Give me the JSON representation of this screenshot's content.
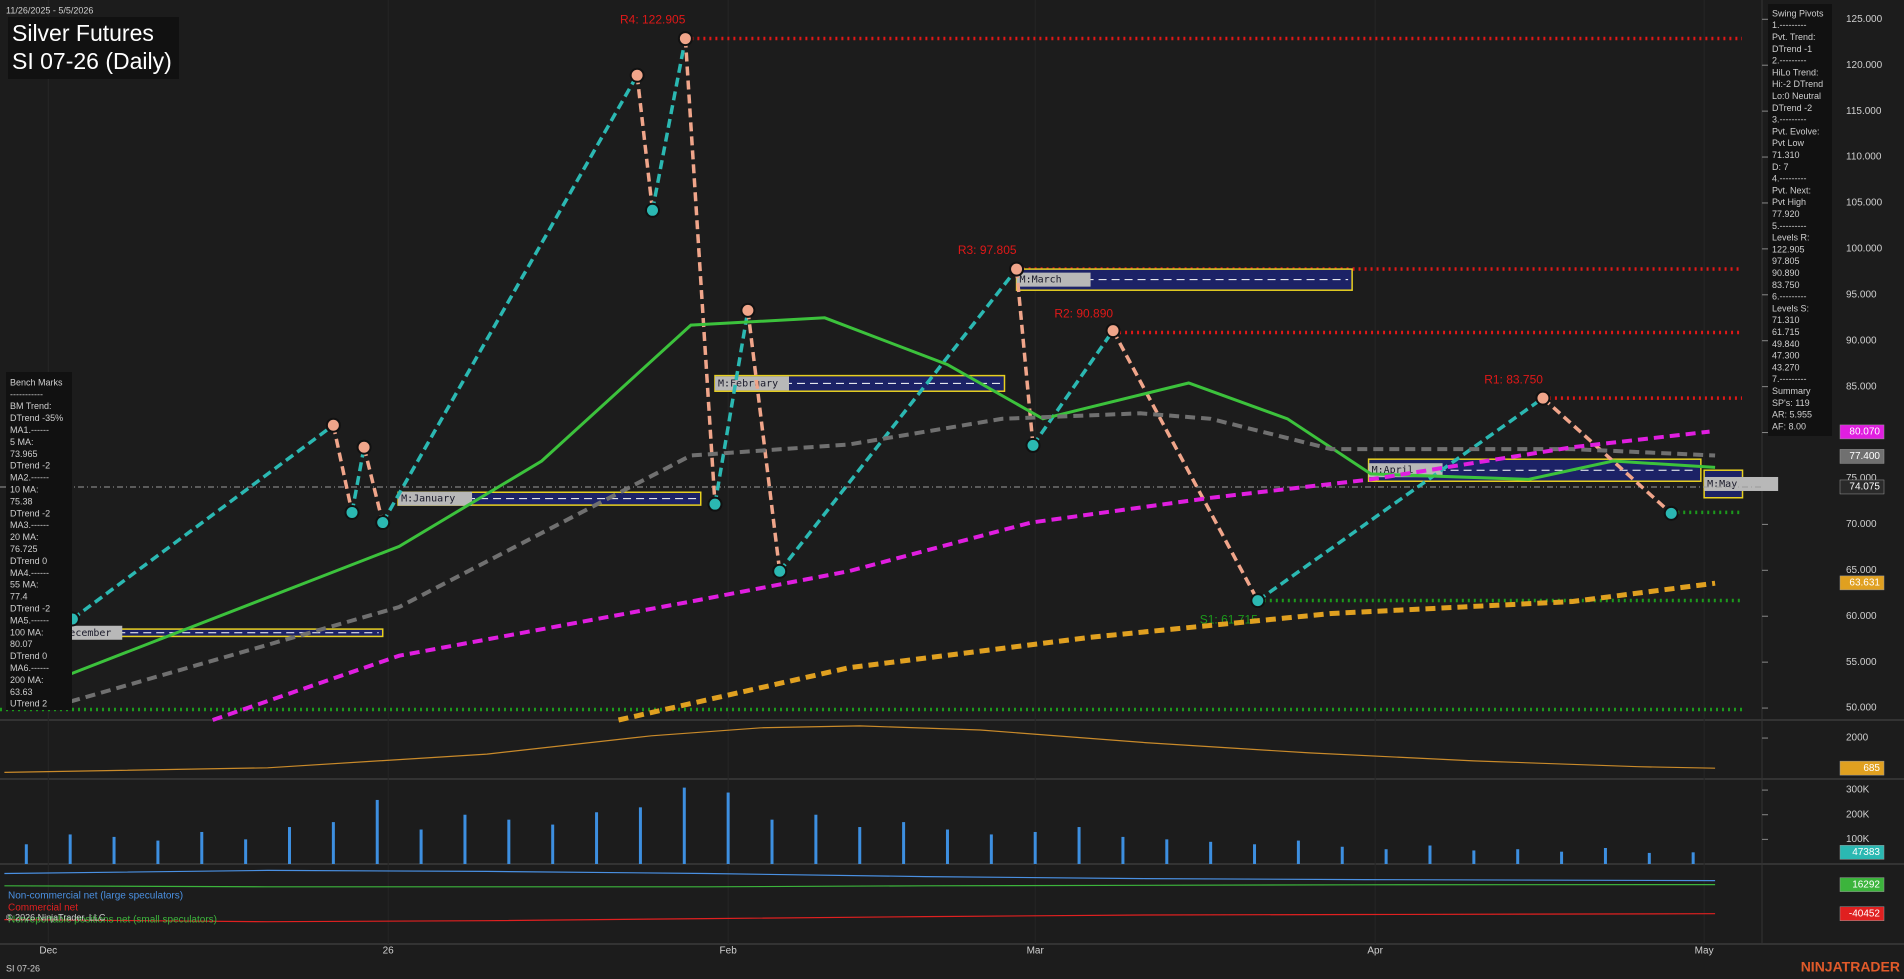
{
  "chart_data": [
    {
      "type": "line",
      "title": "Silver Futures",
      "subtitle": "SI 07-26 (Daily)",
      "date_range": "11/26/2025 - 5/5/2026",
      "xlim": [
        -4.4,
        155
      ],
      "xticks": [
        {
          "value": 0,
          "label": "Dec"
        },
        {
          "value": 31,
          "label": "26"
        },
        {
          "value": 62,
          "label": "Feb"
        },
        {
          "value": 90,
          "label": "Mar"
        },
        {
          "value": 121,
          "label": "Apr"
        },
        {
          "value": 151,
          "label": "May"
        }
      ],
      "ylim": [
        48.7,
        127.1
      ],
      "yticks": [
        {
          "value": 50,
          "label": "50.000"
        },
        {
          "value": 55,
          "label": "55.000"
        },
        {
          "value": 60,
          "label": "60.000"
        },
        {
          "value": 65,
          "label": "65.000"
        },
        {
          "value": 70,
          "label": "70.000"
        },
        {
          "value": 75,
          "label": "75.000"
        },
        {
          "value": 80,
          "label": "80.000"
        },
        {
          "value": 85,
          "label": "85.000"
        },
        {
          "value": 90,
          "label": "90.000"
        },
        {
          "value": 95,
          "label": "95.000"
        },
        {
          "value": 100,
          "label": "100.000"
        },
        {
          "value": 105,
          "label": "105.000"
        },
        {
          "value": 110,
          "label": "110.000"
        },
        {
          "value": 115,
          "label": "115.000"
        },
        {
          "value": 120,
          "label": "120.000"
        },
        {
          "value": 125,
          "label": "125.000"
        }
      ],
      "series": [
        {
          "style": "zigzag",
          "color": "#2bb8b2",
          "down_color": "#f0a58a",
          "x": [
            2.2,
            26,
            27.7,
            28.8,
            30.5,
            53.7,
            55.1,
            58.1,
            60.8,
            63.8,
            66.7,
            88.3,
            89.8,
            97.1,
            110.3,
            136.3,
            148
          ],
          "values": [
            59.7,
            80.8,
            71.3,
            78.4,
            70.2,
            118.9,
            104.2,
            122.9,
            72.2,
            93.3,
            64.9,
            97.8,
            78.6,
            91.1,
            61.7,
            83.75,
            71.2
          ]
        },
        {
          "color": "#3cc23c",
          "width": 3,
          "x": [
            2,
            32,
            45,
            58.6,
            70.8,
            82,
            90.7,
            104,
            113,
            120.6,
            135,
            142.7,
            152
          ],
          "values": [
            53.7,
            67.6,
            76.9,
            91.7,
            92.5,
            87.4,
            81.5,
            85.4,
            81.5,
            75.5,
            74.9,
            76.9,
            76.2
          ]
        },
        {
          "color": "#707070",
          "width": 4,
          "dash": true,
          "x": [
            2,
            32,
            58.6,
            73,
            87,
            99.6,
            106,
            117,
            139,
            152
          ],
          "values": [
            50.7,
            61.0,
            77.5,
            78.7,
            81.5,
            82.1,
            81.5,
            78.2,
            78.2,
            77.5
          ]
        },
        {
          "color": "#e01ee0",
          "width": 4,
          "dash": true,
          "x": [
            15,
            32,
            58.6,
            73,
            89.6,
            106,
            120.6,
            139,
            151.5
          ],
          "values": [
            48.7,
            55.7,
            61.6,
            64.9,
            70.2,
            72.9,
            74.9,
            78.4,
            80.1
          ]
        },
        {
          "color": "#e0a020",
          "width": 5,
          "dash": true,
          "x": [
            52,
            73,
            95,
            117,
            139,
            152
          ],
          "values": [
            48.7,
            54.4,
            57.7,
            60.3,
            61.6,
            63.6
          ]
        }
      ],
      "levels": [
        {
          "label": "R4: 122.905",
          "value": 122.905,
          "from": 58.1,
          "color": "#e01818"
        },
        {
          "label": "R3: 97.805",
          "value": 97.805,
          "from": 88.3,
          "color": "#e01818"
        },
        {
          "label": "R2: 90.890",
          "value": 90.89,
          "from": 97.1,
          "color": "#e01818"
        },
        {
          "label": "R1: 83.750",
          "value": 83.75,
          "from": 136.3,
          "color": "#e01818"
        },
        {
          "label": "S1: 61.715",
          "value": 61.715,
          "from": 110.3,
          "color": "#1c9a1c",
          "label_side": "below"
        },
        {
          "value": 71.31,
          "from": 148,
          "color": "#1c9a1c"
        },
        {
          "value": 49.84,
          "from": -4.4,
          "color": "#1c9a1c"
        }
      ],
      "boxes": [
        {
          "label": "M:December",
          "x": [
            0,
            30.5
          ],
          "y": [
            57.8,
            58.6
          ]
        },
        {
          "label": "M:January",
          "x": [
            31.9,
            59.5
          ],
          "y": [
            72.1,
            73.5
          ]
        },
        {
          "label": "M:February",
          "x": [
            60.8,
            87.2
          ],
          "y": [
            84.5,
            86.2
          ]
        },
        {
          "label": "M:March",
          "x": [
            88.3,
            118.9
          ],
          "y": [
            95.5,
            97.8
          ]
        },
        {
          "label": "M:April",
          "x": [
            120.4,
            150.7
          ],
          "y": [
            74.7,
            77.1
          ]
        },
        {
          "label": "M:May",
          "x": [
            151,
            154.5
          ],
          "y": [
            72.9,
            75.9
          ]
        }
      ],
      "last_price": {
        "value": 74.075,
        "label": "74.075"
      },
      "price_labels": [
        {
          "value": 80.07,
          "label": "80.070",
          "color": "#e01ee0"
        },
        {
          "value": 77.4,
          "label": "77.400",
          "color": "#707070"
        },
        {
          "value": 63.631,
          "label": "63.631",
          "color": "#e0a020"
        }
      ]
    },
    {
      "type": "line",
      "ylim": [
        211,
        2789
      ],
      "yticks": [
        2000
      ],
      "series": [
        {
          "color": "#c98a2a",
          "width": 1.2,
          "x": [
            -4,
            20,
            40,
            55,
            65,
            74,
            85,
            100,
            115,
            130,
            145,
            152
          ],
          "values": [
            500,
            700,
            1300,
            2100,
            2450,
            2530,
            2350,
            1800,
            1350,
            1000,
            750,
            685
          ]
        }
      ],
      "price_labels": [
        {
          "value": 685,
          "label": "685",
          "color": "#e0a020"
        }
      ]
    },
    {
      "type": "bar",
      "ylim": [
        0,
        345000
      ],
      "color": "#3d8fe0",
      "yticks": [
        {
          "value": 100000,
          "label": "100K"
        },
        {
          "value": 200000,
          "label": "200K"
        },
        {
          "value": 300000,
          "label": "300K"
        }
      ],
      "x": [
        -2,
        2,
        6,
        10,
        14,
        18,
        22,
        26,
        30,
        34,
        38,
        42,
        46,
        50,
        54,
        58,
        62,
        66,
        70,
        74,
        78,
        82,
        86,
        90,
        94,
        98,
        102,
        106,
        110,
        114,
        118,
        122,
        126,
        130,
        134,
        138,
        142,
        146,
        150
      ],
      "values": [
        80000,
        120000,
        110000,
        95000,
        130000,
        100000,
        150000,
        170000,
        260000,
        140000,
        200000,
        180000,
        160000,
        210000,
        230000,
        310000,
        290000,
        180000,
        200000,
        150000,
        170000,
        140000,
        120000,
        130000,
        150000,
        110000,
        100000,
        90000,
        80000,
        95000,
        70000,
        60000,
        75000,
        55000,
        60000,
        50000,
        65000,
        45000,
        47383
      ],
      "price_labels": [
        {
          "value": 47383,
          "label": "47383",
          "color": "#2bb8b2"
        }
      ]
    },
    {
      "type": "line",
      "ylim": [
        -99500,
        56500
      ],
      "series": [
        {
          "name": "Non-commercial net (large speculators)",
          "color": "#4a90e2",
          "width": 1.2,
          "x": [
            -4,
            20,
            40,
            60,
            80,
            100,
            120,
            152
          ],
          "values": [
            38000,
            44000,
            42000,
            38000,
            32000,
            28000,
            26000,
            24160
          ]
        },
        {
          "name": "Commercial net",
          "color": "#e02020",
          "width": 1.2,
          "x": [
            -4,
            20,
            40,
            60,
            80,
            100,
            120,
            152
          ],
          "values": [
            -52000,
            -56000,
            -54000,
            -50000,
            -46000,
            -43000,
            -42000,
            -40452
          ]
        },
        {
          "name": "Nonreportable positions net (small speculators)",
          "color": "#3cb43c",
          "width": 1.2,
          "x": [
            -4,
            20,
            40,
            60,
            80,
            100,
            120,
            152
          ],
          "values": [
            14000,
            12000,
            12000,
            12000,
            14000,
            15000,
            16000,
            16292
          ]
        }
      ],
      "price_labels": [
        {
          "value": 16292,
          "label": "16292",
          "color": "#3cb43c"
        },
        {
          "value": -40452,
          "label": "-40452",
          "color": "#e02020"
        }
      ]
    }
  ],
  "swing_pivots": {
    "lines": [
      "Swing Pivots",
      "1.---------",
      "Pvt. Trend:",
      "DTrend -1",
      "2.---------",
      "HiLo Trend:",
      "Hi:-2 DTrend",
      "Lo:0 Neutral",
      "DTrend -2",
      "3.---------",
      "Pvt. Evolve:",
      "Pvt Low",
      "71.310",
      "D: 7",
      "4.---------",
      "Pvt. Next:",
      "Pvt High",
      "77.920",
      "5.---------",
      "Levels R:",
      "122.905",
      "97.805",
      "90.890",
      "83.750",
      "6.---------",
      "Levels S:",
      "71.310",
      "61.715",
      "49.840",
      "47.300",
      "43.270",
      "7.---------",
      "Summary",
      "SP's: 119",
      "AR: 5.955",
      "AF: 8.00"
    ]
  },
  "bench_marks": {
    "lines": [
      "Bench Marks",
      "-----------",
      "BM Trend:",
      "DTrend -35%",
      "MA1.------",
      "5 MA:",
      "73.965",
      "DTrend -2",
      "MA2.------",
      "10 MA:",
      "75.38",
      "DTrend -2",
      "MA3.------",
      "20 MA:",
      "76.725",
      "DTrend 0",
      "MA4.------",
      "55 MA:",
      "77.4",
      "DTrend -2",
      "MA5.------",
      "100 MA:",
      "80.07",
      "DTrend 0",
      "MA6.------",
      "200 MA:",
      "63.63",
      "UTrend 2"
    ]
  },
  "footer": {
    "copyright": "© 2026 NinjaTrader, LLC",
    "instrument": "SI 07-26",
    "brand": "NINJATRADER"
  }
}
